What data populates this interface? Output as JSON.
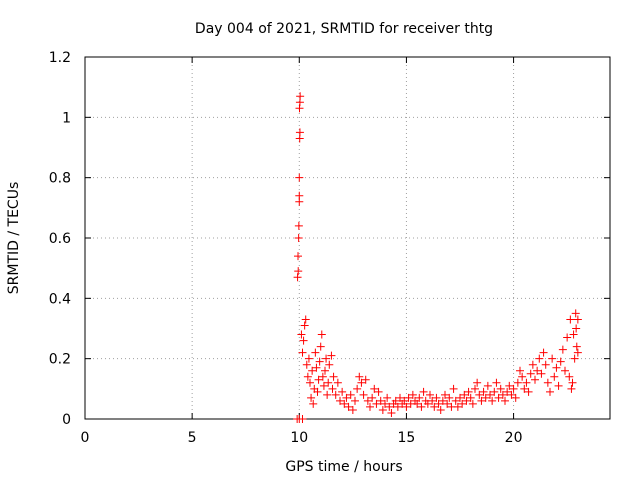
{
  "chart_data": {
    "type": "scatter",
    "title": "Day 004 of 2021, SRMTID for receiver thtg",
    "xlabel": "GPS time / hours",
    "ylabel": "SRMTID / TECUs",
    "xlim": [
      0,
      24.5
    ],
    "ylim": [
      0,
      1.2
    ],
    "xticks": [
      0,
      5,
      10,
      15,
      20
    ],
    "xtick_labels": [
      "0",
      "5",
      "10",
      "15",
      "20"
    ],
    "yticks": [
      0,
      0.2,
      0.4,
      0.6,
      0.8,
      1.0,
      1.2
    ],
    "ytick_labels": [
      "0",
      "0.2",
      "0.4",
      "0.6",
      "0.8",
      "1",
      "1.2"
    ],
    "grid": true,
    "marker": "+",
    "series": [
      {
        "name": "SRMTID",
        "color": "#ff0000",
        "points": [
          [
            9.9,
            0.0
          ],
          [
            10.0,
            0.0
          ],
          [
            10.15,
            0.0
          ],
          [
            9.92,
            0.47
          ],
          [
            9.95,
            0.49
          ],
          [
            9.94,
            0.54
          ],
          [
            9.97,
            0.6
          ],
          [
            9.98,
            0.64
          ],
          [
            10.0,
            0.72
          ],
          [
            10.0,
            0.74
          ],
          [
            10.0,
            0.8
          ],
          [
            10.02,
            0.93
          ],
          [
            10.03,
            0.95
          ],
          [
            10.01,
            1.03
          ],
          [
            10.03,
            1.05
          ],
          [
            10.04,
            1.07
          ],
          [
            10.1,
            0.28
          ],
          [
            10.15,
            0.22
          ],
          [
            10.2,
            0.26
          ],
          [
            10.25,
            0.31
          ],
          [
            10.3,
            0.33
          ],
          [
            10.35,
            0.18
          ],
          [
            10.4,
            0.14
          ],
          [
            10.45,
            0.2
          ],
          [
            10.5,
            0.12
          ],
          [
            10.55,
            0.07
          ],
          [
            10.6,
            0.16
          ],
          [
            10.65,
            0.05
          ],
          [
            10.7,
            0.1
          ],
          [
            10.75,
            0.22
          ],
          [
            10.8,
            0.17
          ],
          [
            10.85,
            0.09
          ],
          [
            10.9,
            0.13
          ],
          [
            10.95,
            0.19
          ],
          [
            11.0,
            0.24
          ],
          [
            11.05,
            0.28
          ],
          [
            11.1,
            0.14
          ],
          [
            11.15,
            0.11
          ],
          [
            11.2,
            0.16
          ],
          [
            11.25,
            0.2
          ],
          [
            11.3,
            0.08
          ],
          [
            11.35,
            0.12
          ],
          [
            11.4,
            0.18
          ],
          [
            11.5,
            0.21
          ],
          [
            11.55,
            0.1
          ],
          [
            11.6,
            0.14
          ],
          [
            11.7,
            0.08
          ],
          [
            11.8,
            0.12
          ],
          [
            11.9,
            0.06
          ],
          [
            12.0,
            0.09
          ],
          [
            12.1,
            0.05
          ],
          [
            12.2,
            0.07
          ],
          [
            12.3,
            0.04
          ],
          [
            12.4,
            0.08
          ],
          [
            12.5,
            0.03
          ],
          [
            12.6,
            0.06
          ],
          [
            12.7,
            0.1
          ],
          [
            12.8,
            0.14
          ],
          [
            12.9,
            0.12
          ],
          [
            13.0,
            0.08
          ],
          [
            13.1,
            0.13
          ],
          [
            13.2,
            0.06
          ],
          [
            13.3,
            0.04
          ],
          [
            13.4,
            0.07
          ],
          [
            13.5,
            0.1
          ],
          [
            13.6,
            0.05
          ],
          [
            13.7,
            0.09
          ],
          [
            13.8,
            0.06
          ],
          [
            13.9,
            0.03
          ],
          [
            14.0,
            0.05
          ],
          [
            14.1,
            0.07
          ],
          [
            14.2,
            0.04
          ],
          [
            14.3,
            0.02
          ],
          [
            14.4,
            0.05
          ],
          [
            14.5,
            0.06
          ],
          [
            14.6,
            0.04
          ],
          [
            14.7,
            0.07
          ],
          [
            14.8,
            0.05
          ],
          [
            14.9,
            0.06
          ],
          [
            15.0,
            0.04
          ],
          [
            15.1,
            0.07
          ],
          [
            15.2,
            0.05
          ],
          [
            15.3,
            0.08
          ],
          [
            15.4,
            0.06
          ],
          [
            15.5,
            0.05
          ],
          [
            15.6,
            0.07
          ],
          [
            15.7,
            0.04
          ],
          [
            15.8,
            0.09
          ],
          [
            15.9,
            0.06
          ],
          [
            16.0,
            0.05
          ],
          [
            16.1,
            0.08
          ],
          [
            16.2,
            0.06
          ],
          [
            16.3,
            0.04
          ],
          [
            16.4,
            0.07
          ],
          [
            16.5,
            0.05
          ],
          [
            16.6,
            0.03
          ],
          [
            16.7,
            0.06
          ],
          [
            16.8,
            0.08
          ],
          [
            16.9,
            0.05
          ],
          [
            17.0,
            0.07
          ],
          [
            17.1,
            0.04
          ],
          [
            17.2,
            0.1
          ],
          [
            17.3,
            0.06
          ],
          [
            17.4,
            0.04
          ],
          [
            17.5,
            0.07
          ],
          [
            17.6,
            0.05
          ],
          [
            17.7,
            0.08
          ],
          [
            17.8,
            0.06
          ],
          [
            17.9,
            0.09
          ],
          [
            18.0,
            0.07
          ],
          [
            18.1,
            0.05
          ],
          [
            18.2,
            0.1
          ],
          [
            18.3,
            0.12
          ],
          [
            18.4,
            0.08
          ],
          [
            18.5,
            0.06
          ],
          [
            18.6,
            0.09
          ],
          [
            18.7,
            0.07
          ],
          [
            18.8,
            0.11
          ],
          [
            18.9,
            0.08
          ],
          [
            19.0,
            0.06
          ],
          [
            19.1,
            0.09
          ],
          [
            19.2,
            0.12
          ],
          [
            19.3,
            0.07
          ],
          [
            19.4,
            0.1
          ],
          [
            19.5,
            0.08
          ],
          [
            19.6,
            0.06
          ],
          [
            19.7,
            0.09
          ],
          [
            19.8,
            0.11
          ],
          [
            19.9,
            0.08
          ],
          [
            20.0,
            0.1
          ],
          [
            20.1,
            0.07
          ],
          [
            20.2,
            0.12
          ],
          [
            20.3,
            0.16
          ],
          [
            20.4,
            0.14
          ],
          [
            20.5,
            0.1
          ],
          [
            20.6,
            0.12
          ],
          [
            20.7,
            0.09
          ],
          [
            20.8,
            0.15
          ],
          [
            20.9,
            0.18
          ],
          [
            21.0,
            0.13
          ],
          [
            21.1,
            0.16
          ],
          [
            21.2,
            0.2
          ],
          [
            21.3,
            0.15
          ],
          [
            21.4,
            0.22
          ],
          [
            21.5,
            0.18
          ],
          [
            21.6,
            0.12
          ],
          [
            21.7,
            0.09
          ],
          [
            21.8,
            0.2
          ],
          [
            21.9,
            0.14
          ],
          [
            22.0,
            0.17
          ],
          [
            22.1,
            0.11
          ],
          [
            22.2,
            0.19
          ],
          [
            22.3,
            0.23
          ],
          [
            22.4,
            0.16
          ],
          [
            22.5,
            0.27
          ],
          [
            22.6,
            0.14
          ],
          [
            22.65,
            0.33
          ],
          [
            22.7,
            0.1
          ],
          [
            22.75,
            0.12
          ],
          [
            22.8,
            0.28
          ],
          [
            22.85,
            0.2
          ],
          [
            22.9,
            0.35
          ],
          [
            22.92,
            0.3
          ],
          [
            22.95,
            0.24
          ],
          [
            23.0,
            0.33
          ],
          [
            23.0,
            0.22
          ]
        ]
      }
    ]
  }
}
